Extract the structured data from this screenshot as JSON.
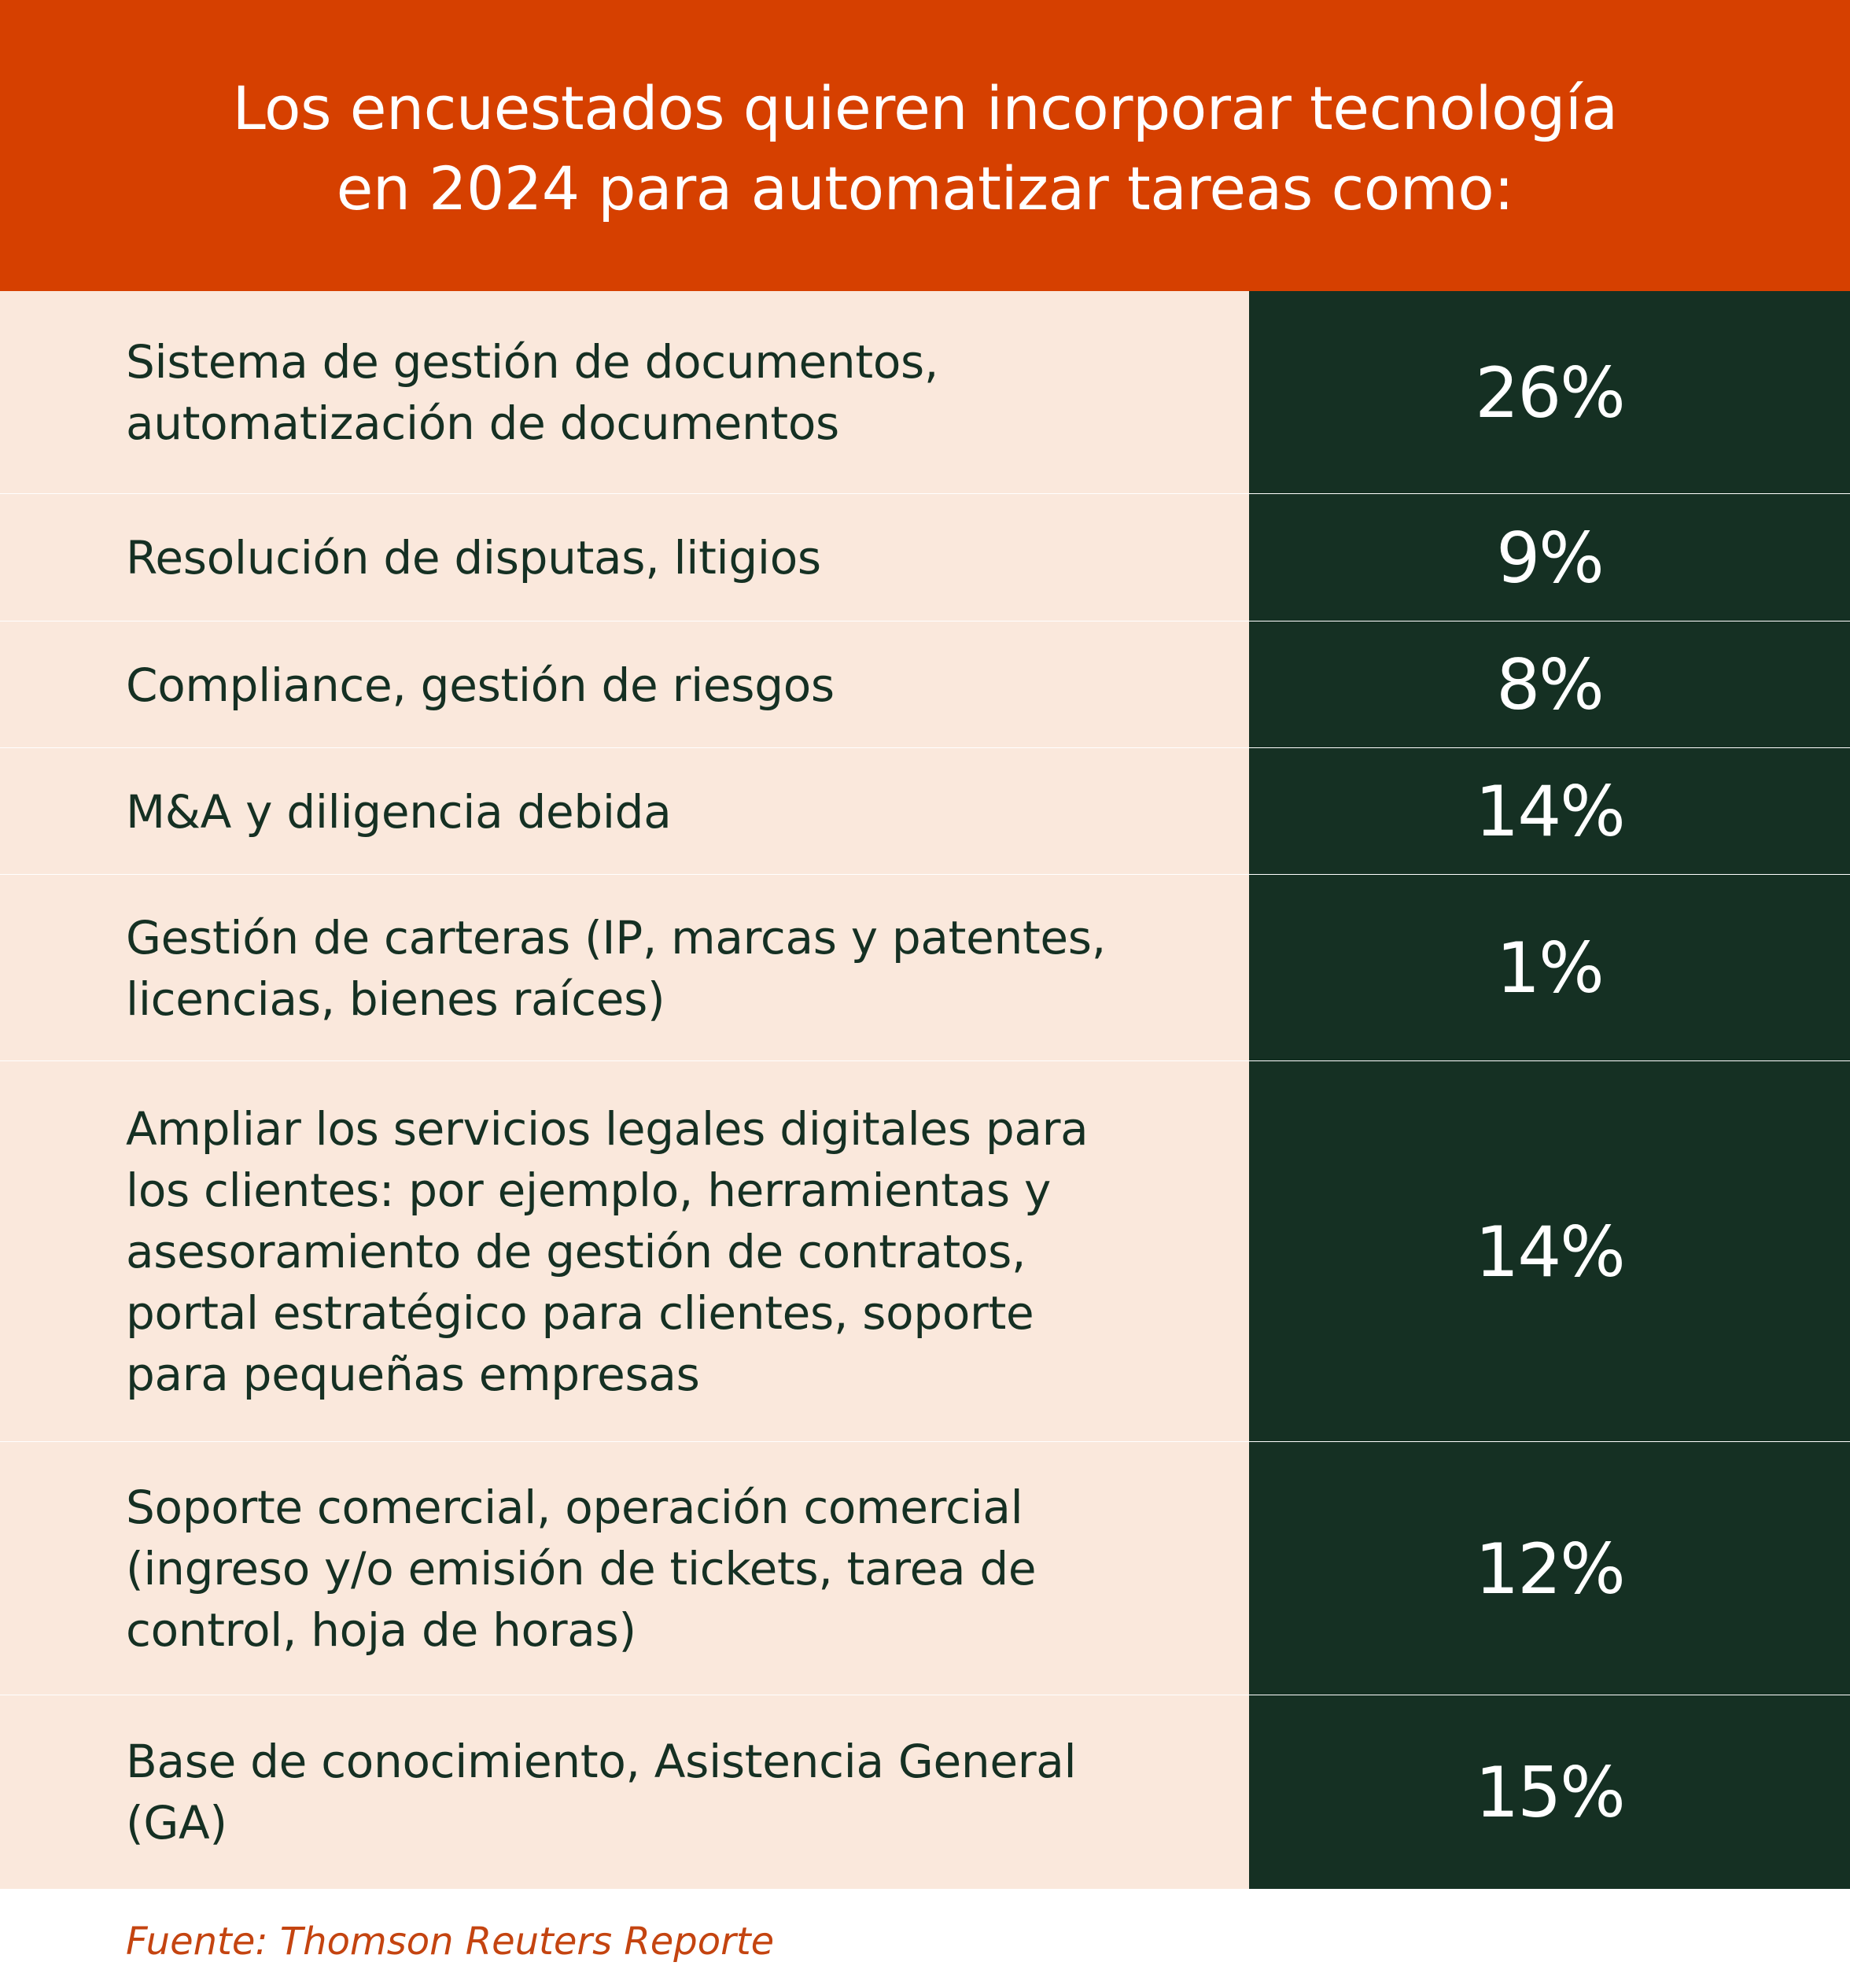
{
  "chart_data": {
    "type": "table",
    "title_lines": [
      "Los encuestados quieren incorporar tecnología",
      "en 2024 para automatizar tareas como:"
    ],
    "rows": [
      {
        "label_lines": [
          "Sistema de gestión de documentos,",
          "automatización de documentos"
        ],
        "value": 26,
        "value_text": "26%"
      },
      {
        "label_lines": [
          "Resolución de disputas, litigios"
        ],
        "value": 9,
        "value_text": "9%"
      },
      {
        "label_lines": [
          "Compliance, gestión de riesgos"
        ],
        "value": 8,
        "value_text": "8%"
      },
      {
        "label_lines": [
          "M&A y diligencia debida"
        ],
        "value": 14,
        "value_text": "14%"
      },
      {
        "label_lines": [
          "Gestión de carteras (IP, marcas y patentes,",
          "licencias, bienes raíces)"
        ],
        "value": 1,
        "value_text": "1%"
      },
      {
        "label_lines": [
          "Ampliar los servicios legales digitales para",
          "los clientes: por ejemplo, herramientas y",
          "asesoramiento de gestión de contratos,",
          "portal estratégico para clientes, soporte",
          "para pequeñas empresas"
        ],
        "value": 14,
        "value_text": "14%"
      },
      {
        "label_lines": [
          "Soporte comercial, operación comercial",
          "(ingreso y/o emisión de tickets, tarea de",
          "control, hoja de horas)"
        ],
        "value": 12,
        "value_text": "12%"
      },
      {
        "label_lines": [
          "Base de conocimiento, Asistencia General",
          "(GA)"
        ],
        "value": 15,
        "value_text": "15%"
      }
    ],
    "source": "Fuente: Thomson Reuters Reporte"
  },
  "colors": {
    "header_background": "#d64000",
    "label_background": "#fae8dc",
    "value_background": "#153023",
    "label_text": "#153023",
    "source_text": "#c44410"
  }
}
